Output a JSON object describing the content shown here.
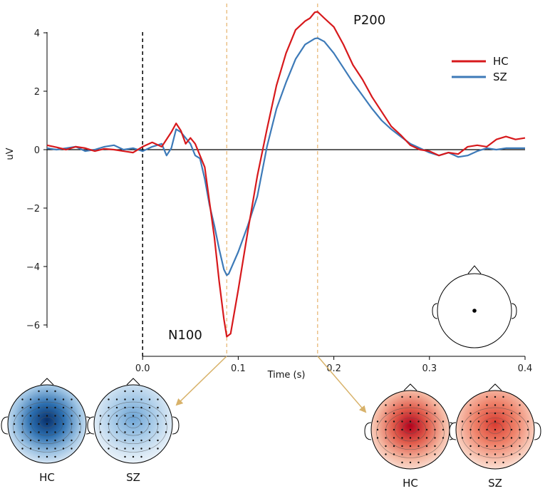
{
  "colors": {
    "hc": "#d7191c",
    "sz": "#3d7ab8",
    "marker_line": "#e8b878",
    "arrow": "#d8b26a"
  },
  "chart_data": {
    "type": "line",
    "title": "",
    "xlabel": "Time (s)",
    "ylabel": "uV",
    "xlim": [
      -0.1,
      0.4
    ],
    "ylim": [
      -6.8,
      4.6
    ],
    "x_ticks": [
      0.0,
      0.1,
      0.2,
      0.3,
      0.4
    ],
    "x_tick_labels": [
      "0.0",
      "0.1",
      "0.2",
      "0.3",
      "0.4"
    ],
    "y_ticks": [
      4,
      2,
      0,
      -2,
      -4,
      -6
    ],
    "y_tick_labels": [
      "4",
      "2",
      "0",
      "−2",
      "−4",
      "−6"
    ],
    "stimulus_onset": 0.0,
    "marker_times": [
      0.088,
      0.183
    ],
    "annotations": [
      {
        "text": "N100",
        "x": 0.04,
        "y": -6.3
      },
      {
        "text": "P200",
        "x": 0.22,
        "y": 4.4
      }
    ],
    "legend": {
      "position": "top-right",
      "entries": [
        "HC",
        "SZ"
      ]
    },
    "series": [
      {
        "name": "HC",
        "points": [
          [
            -0.1,
            0.15
          ],
          [
            -0.09,
            0.08
          ],
          [
            -0.08,
            0.0
          ],
          [
            -0.07,
            0.1
          ],
          [
            -0.06,
            0.05
          ],
          [
            -0.05,
            -0.05
          ],
          [
            -0.04,
            0.03
          ],
          [
            -0.03,
            0.0
          ],
          [
            -0.02,
            -0.05
          ],
          [
            -0.01,
            -0.1
          ],
          [
            0.0,
            0.1
          ],
          [
            0.01,
            0.25
          ],
          [
            0.02,
            0.1
          ],
          [
            0.03,
            0.6
          ],
          [
            0.035,
            0.9
          ],
          [
            0.04,
            0.65
          ],
          [
            0.045,
            0.2
          ],
          [
            0.05,
            0.4
          ],
          [
            0.055,
            0.2
          ],
          [
            0.06,
            -0.2
          ],
          [
            0.065,
            -0.6
          ],
          [
            0.07,
            -1.8
          ],
          [
            0.075,
            -3.0
          ],
          [
            0.08,
            -4.5
          ],
          [
            0.085,
            -5.8
          ],
          [
            0.088,
            -6.4
          ],
          [
            0.092,
            -6.3
          ],
          [
            0.1,
            -4.8
          ],
          [
            0.11,
            -2.8
          ],
          [
            0.12,
            -0.9
          ],
          [
            0.13,
            0.7
          ],
          [
            0.14,
            2.2
          ],
          [
            0.15,
            3.3
          ],
          [
            0.16,
            4.1
          ],
          [
            0.17,
            4.4
          ],
          [
            0.175,
            4.5
          ],
          [
            0.18,
            4.7
          ],
          [
            0.183,
            4.72
          ],
          [
            0.19,
            4.5
          ],
          [
            0.2,
            4.2
          ],
          [
            0.21,
            3.6
          ],
          [
            0.22,
            2.9
          ],
          [
            0.23,
            2.4
          ],
          [
            0.24,
            1.8
          ],
          [
            0.25,
            1.3
          ],
          [
            0.26,
            0.8
          ],
          [
            0.27,
            0.5
          ],
          [
            0.28,
            0.15
          ],
          [
            0.29,
            0.0
          ],
          [
            0.3,
            -0.05
          ],
          [
            0.31,
            -0.2
          ],
          [
            0.32,
            -0.1
          ],
          [
            0.33,
            -0.15
          ],
          [
            0.34,
            0.1
          ],
          [
            0.35,
            0.15
          ],
          [
            0.36,
            0.1
          ],
          [
            0.37,
            0.35
          ],
          [
            0.38,
            0.45
          ],
          [
            0.39,
            0.35
          ],
          [
            0.4,
            0.4
          ]
        ]
      },
      {
        "name": "SZ",
        "points": [
          [
            -0.1,
            0.05
          ],
          [
            -0.09,
            0.0
          ],
          [
            -0.08,
            0.05
          ],
          [
            -0.07,
            0.1
          ],
          [
            -0.06,
            -0.05
          ],
          [
            -0.05,
            0.0
          ],
          [
            -0.04,
            0.1
          ],
          [
            -0.03,
            0.15
          ],
          [
            -0.02,
            0.0
          ],
          [
            -0.01,
            0.05
          ],
          [
            0.0,
            -0.05
          ],
          [
            0.01,
            0.1
          ],
          [
            0.02,
            0.2
          ],
          [
            0.025,
            -0.2
          ],
          [
            0.03,
            0.05
          ],
          [
            0.035,
            0.7
          ],
          [
            0.04,
            0.6
          ],
          [
            0.05,
            0.2
          ],
          [
            0.055,
            -0.2
          ],
          [
            0.06,
            -0.3
          ],
          [
            0.065,
            -1.0
          ],
          [
            0.07,
            -1.9
          ],
          [
            0.075,
            -2.6
          ],
          [
            0.08,
            -3.4
          ],
          [
            0.085,
            -4.1
          ],
          [
            0.088,
            -4.3
          ],
          [
            0.09,
            -4.25
          ],
          [
            0.1,
            -3.5
          ],
          [
            0.11,
            -2.6
          ],
          [
            0.12,
            -1.6
          ],
          [
            0.13,
            0.1
          ],
          [
            0.14,
            1.4
          ],
          [
            0.15,
            2.3
          ],
          [
            0.16,
            3.1
          ],
          [
            0.17,
            3.6
          ],
          [
            0.18,
            3.8
          ],
          [
            0.183,
            3.82
          ],
          [
            0.19,
            3.7
          ],
          [
            0.2,
            3.3
          ],
          [
            0.21,
            2.8
          ],
          [
            0.22,
            2.3
          ],
          [
            0.23,
            1.85
          ],
          [
            0.24,
            1.4
          ],
          [
            0.25,
            1.0
          ],
          [
            0.26,
            0.7
          ],
          [
            0.27,
            0.45
          ],
          [
            0.28,
            0.2
          ],
          [
            0.29,
            0.05
          ],
          [
            0.3,
            -0.1
          ],
          [
            0.31,
            -0.2
          ],
          [
            0.32,
            -0.1
          ],
          [
            0.33,
            -0.25
          ],
          [
            0.34,
            -0.2
          ],
          [
            0.35,
            -0.05
          ],
          [
            0.36,
            0.05
          ],
          [
            0.37,
            0.0
          ],
          [
            0.38,
            0.05
          ],
          [
            0.39,
            0.05
          ],
          [
            0.4,
            0.05
          ]
        ]
      }
    ],
    "topomaps": [
      {
        "label": "HC",
        "component": "N100",
        "polarity": "negative",
        "strength": 1.0
      },
      {
        "label": "SZ",
        "component": "N100",
        "polarity": "negative",
        "strength": 0.55
      },
      {
        "label": "HC",
        "component": "P200",
        "polarity": "positive",
        "strength": 1.0
      },
      {
        "label": "SZ",
        "component": "P200",
        "polarity": "positive",
        "strength": 0.8
      }
    ]
  }
}
